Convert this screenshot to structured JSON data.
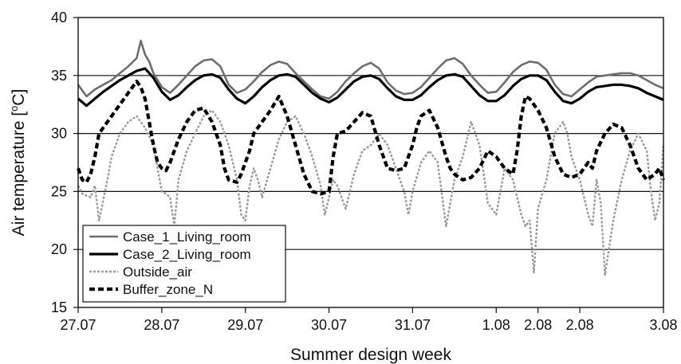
{
  "chart_data": {
    "type": "line",
    "xlabel": "Summer design week",
    "ylabel": "Air temperature [°C]",
    "ylabel_parts": [
      "Air temperature [",
      "o",
      "C]"
    ],
    "ylim": [
      15,
      40
    ],
    "yticks": [
      "15",
      "20",
      "25",
      "30",
      "35",
      "40"
    ],
    "xlim": [
      0,
      7
    ],
    "xticks": [
      "27.07",
      "28.07",
      "29.07",
      "30.07",
      "31.07",
      "1.08",
      "2.08",
      "2.08",
      "3.08"
    ],
    "xtick_days": [
      0,
      1,
      2,
      3,
      4,
      5,
      5.5,
      6,
      7
    ],
    "grid": "horizontal major gridlines at 25, 30, 35",
    "legend_position": "bottom-left",
    "series": [
      {
        "name": "Case_1_Living_room",
        "color": "#6e6e6e",
        "style": "solid",
        "x": [
          0,
          0.1,
          0.2,
          0.3,
          0.4,
          0.5,
          0.6,
          0.7,
          0.75,
          0.8,
          0.85,
          0.9,
          1.0,
          1.1,
          1.2,
          1.3,
          1.4,
          1.5,
          1.6,
          1.7,
          1.8,
          1.9,
          2.0,
          2.1,
          2.2,
          2.3,
          2.4,
          2.5,
          2.6,
          2.7,
          2.8,
          2.9,
          3.0,
          3.1,
          3.2,
          3.3,
          3.4,
          3.5,
          3.6,
          3.7,
          3.8,
          3.9,
          4.0,
          4.1,
          4.2,
          4.3,
          4.4,
          4.5,
          4.6,
          4.7,
          4.8,
          4.9,
          5.0,
          5.1,
          5.2,
          5.3,
          5.4,
          5.5,
          5.6,
          5.7,
          5.8,
          5.9,
          6.0,
          6.1,
          6.2,
          6.3,
          6.4,
          6.5,
          6.6,
          6.7,
          6.8,
          6.9,
          7.0
        ],
        "y": [
          34.2,
          33.2,
          33.8,
          34.2,
          34.6,
          35.2,
          35.8,
          36.5,
          38.0,
          36.8,
          36.2,
          35.2,
          34.0,
          33.5,
          34.2,
          35.0,
          35.8,
          36.3,
          36.4,
          35.8,
          34.2,
          33.5,
          33.8,
          34.5,
          35.3,
          35.9,
          36.2,
          36.0,
          35.2,
          34.5,
          33.8,
          33.2,
          33.0,
          33.6,
          34.5,
          35.2,
          35.8,
          36.1,
          35.6,
          34.4,
          33.7,
          33.4,
          33.5,
          34.0,
          34.8,
          35.6,
          36.3,
          36.5,
          36.0,
          35.0,
          34.2,
          33.5,
          33.6,
          34.4,
          35.3,
          35.9,
          36.2,
          36.1,
          35.5,
          34.2,
          33.4,
          33.2,
          33.8,
          34.4,
          34.9,
          35.0,
          35.1,
          35.2,
          35.2,
          35.0,
          34.6,
          34.2,
          33.9
        ]
      },
      {
        "name": "Case_2_Living_room",
        "color": "#000000",
        "style": "solid",
        "x": [
          0,
          0.1,
          0.2,
          0.3,
          0.4,
          0.5,
          0.6,
          0.7,
          0.8,
          0.9,
          1.0,
          1.1,
          1.2,
          1.3,
          1.4,
          1.5,
          1.6,
          1.7,
          1.8,
          1.9,
          2.0,
          2.1,
          2.2,
          2.3,
          2.4,
          2.5,
          2.6,
          2.7,
          2.8,
          2.9,
          3.0,
          3.1,
          3.2,
          3.3,
          3.4,
          3.5,
          3.6,
          3.7,
          3.8,
          3.9,
          4.0,
          4.1,
          4.2,
          4.3,
          4.4,
          4.5,
          4.6,
          4.7,
          4.8,
          4.9,
          5.0,
          5.1,
          5.2,
          5.3,
          5.4,
          5.5,
          5.6,
          5.7,
          5.8,
          5.9,
          6.0,
          6.1,
          6.2,
          6.3,
          6.4,
          6.5,
          6.6,
          6.7,
          6.8,
          6.9,
          7.0
        ],
        "y": [
          33.0,
          32.4,
          33.0,
          33.6,
          34.1,
          34.6,
          35.0,
          35.4,
          35.6,
          34.8,
          33.6,
          32.9,
          33.3,
          34.0,
          34.6,
          35.0,
          35.1,
          34.8,
          33.8,
          33.0,
          32.6,
          33.2,
          34.0,
          34.6,
          35.0,
          35.1,
          34.9,
          34.2,
          33.5,
          33.0,
          32.7,
          33.1,
          33.8,
          34.5,
          34.9,
          35.0,
          34.7,
          33.9,
          33.2,
          32.9,
          32.9,
          33.3,
          34.0,
          34.6,
          35.0,
          35.1,
          34.9,
          34.1,
          33.3,
          32.8,
          32.8,
          33.3,
          34.1,
          34.7,
          35.0,
          35.0,
          34.6,
          33.6,
          32.8,
          32.6,
          33.0,
          33.6,
          34.0,
          34.1,
          34.2,
          34.2,
          34.1,
          33.9,
          33.5,
          33.2,
          32.9
        ]
      },
      {
        "name": "Outside_air",
        "color": "#9a9a9a",
        "style": "dotted",
        "x": [
          0,
          0.05,
          0.15,
          0.2,
          0.25,
          0.35,
          0.4,
          0.45,
          0.5,
          0.6,
          0.7,
          0.8,
          0.9,
          0.95,
          1.0,
          1.05,
          1.1,
          1.15,
          1.2,
          1.3,
          1.4,
          1.5,
          1.6,
          1.7,
          1.8,
          1.9,
          1.95,
          2.0,
          2.05,
          2.1,
          2.15,
          2.2,
          2.3,
          2.4,
          2.5,
          2.6,
          2.7,
          2.8,
          2.9,
          2.95,
          3.0,
          3.05,
          3.1,
          3.2,
          3.3,
          3.4,
          3.5,
          3.6,
          3.7,
          3.8,
          3.9,
          3.95,
          4.0,
          4.1,
          4.2,
          4.3,
          4.4,
          4.5,
          4.6,
          4.7,
          4.8,
          4.85,
          4.9,
          5.0,
          5.1,
          5.2,
          5.25,
          5.3,
          5.35,
          5.4,
          5.45,
          5.5,
          5.6,
          5.7,
          5.8,
          5.85,
          5.9,
          6.0,
          6.1,
          6.15,
          6.2,
          6.25,
          6.3,
          6.4,
          6.5,
          6.6,
          6.7,
          6.8,
          6.85,
          6.9,
          6.95,
          7.0
        ],
        "y": [
          25.5,
          24.8,
          24.5,
          25.5,
          22.5,
          26.0,
          28.0,
          29.0,
          30.0,
          31.0,
          31.5,
          30.5,
          29.0,
          27.0,
          25.0,
          24.8,
          24.5,
          22.0,
          26.0,
          28.5,
          30.0,
          31.5,
          32.0,
          31.0,
          29.0,
          26.0,
          23.0,
          22.5,
          25.5,
          27.0,
          26.0,
          24.5,
          27.0,
          29.5,
          31.0,
          31.5,
          30.0,
          28.0,
          25.5,
          23.0,
          24.5,
          26.0,
          25.5,
          23.5,
          26.5,
          28.5,
          29.0,
          30.0,
          29.0,
          27.0,
          25.0,
          23.0,
          25.0,
          27.5,
          28.5,
          27.5,
          22.0,
          26.0,
          28.0,
          31.0,
          29.0,
          26.5,
          24.0,
          23.0,
          27.0,
          26.0,
          24.5,
          23.0,
          22.0,
          22.5,
          18.0,
          23.5,
          26.0,
          30.0,
          31.0,
          30.0,
          28.0,
          26.0,
          23.0,
          22.0,
          26.0,
          24.0,
          17.8,
          22.5,
          26.0,
          28.5,
          30.0,
          28.5,
          25.0,
          22.5,
          24.0,
          29.0
        ]
      },
      {
        "name": "Buffer_zone_N",
        "color": "#000000",
        "style": "dashed",
        "x": [
          0,
          0.05,
          0.1,
          0.15,
          0.2,
          0.25,
          0.3,
          0.4,
          0.5,
          0.6,
          0.7,
          0.75,
          0.8,
          0.85,
          0.9,
          0.95,
          1.0,
          1.05,
          1.1,
          1.2,
          1.3,
          1.4,
          1.5,
          1.6,
          1.7,
          1.75,
          1.8,
          1.9,
          1.95,
          2.0,
          2.05,
          2.1,
          2.2,
          2.3,
          2.4,
          2.5,
          2.6,
          2.7,
          2.8,
          2.9,
          3.0,
          3.05,
          3.1,
          3.2,
          3.3,
          3.4,
          3.5,
          3.6,
          3.7,
          3.8,
          3.9,
          4.0,
          4.05,
          4.1,
          4.2,
          4.3,
          4.4,
          4.45,
          4.5,
          4.6,
          4.7,
          4.8,
          4.9,
          5.0,
          5.1,
          5.2,
          5.25,
          5.3,
          5.35,
          5.4,
          5.5,
          5.6,
          5.7,
          5.8,
          5.9,
          6.0,
          6.05,
          6.1,
          6.15,
          6.2,
          6.3,
          6.4,
          6.5,
          6.6,
          6.7,
          6.8,
          6.9,
          6.95,
          7.0
        ],
        "y": [
          27.0,
          26.0,
          25.8,
          26.5,
          28.0,
          30.0,
          30.5,
          31.5,
          32.5,
          33.5,
          34.5,
          34.0,
          33.0,
          31.0,
          29.0,
          27.5,
          27.0,
          26.8,
          27.5,
          29.5,
          31.0,
          32.0,
          32.2,
          31.0,
          29.0,
          27.0,
          26.0,
          25.8,
          26.5,
          27.5,
          28.5,
          30.0,
          31.0,
          32.0,
          33.2,
          31.5,
          29.0,
          26.5,
          25.0,
          24.8,
          25.0,
          28.0,
          30.0,
          30.2,
          31.0,
          31.8,
          31.5,
          29.0,
          27.0,
          26.8,
          27.0,
          29.0,
          30.5,
          31.5,
          32.0,
          30.5,
          28.0,
          27.0,
          26.5,
          26.0,
          26.2,
          27.0,
          28.5,
          28.0,
          27.0,
          26.5,
          28.5,
          31.5,
          33.2,
          33.0,
          32.0,
          30.5,
          28.0,
          26.5,
          26.2,
          26.5,
          27.0,
          27.5,
          27.0,
          28.5,
          30.0,
          30.8,
          30.5,
          29.0,
          27.0,
          26.0,
          26.5,
          27.0,
          26.0
        ]
      }
    ]
  }
}
